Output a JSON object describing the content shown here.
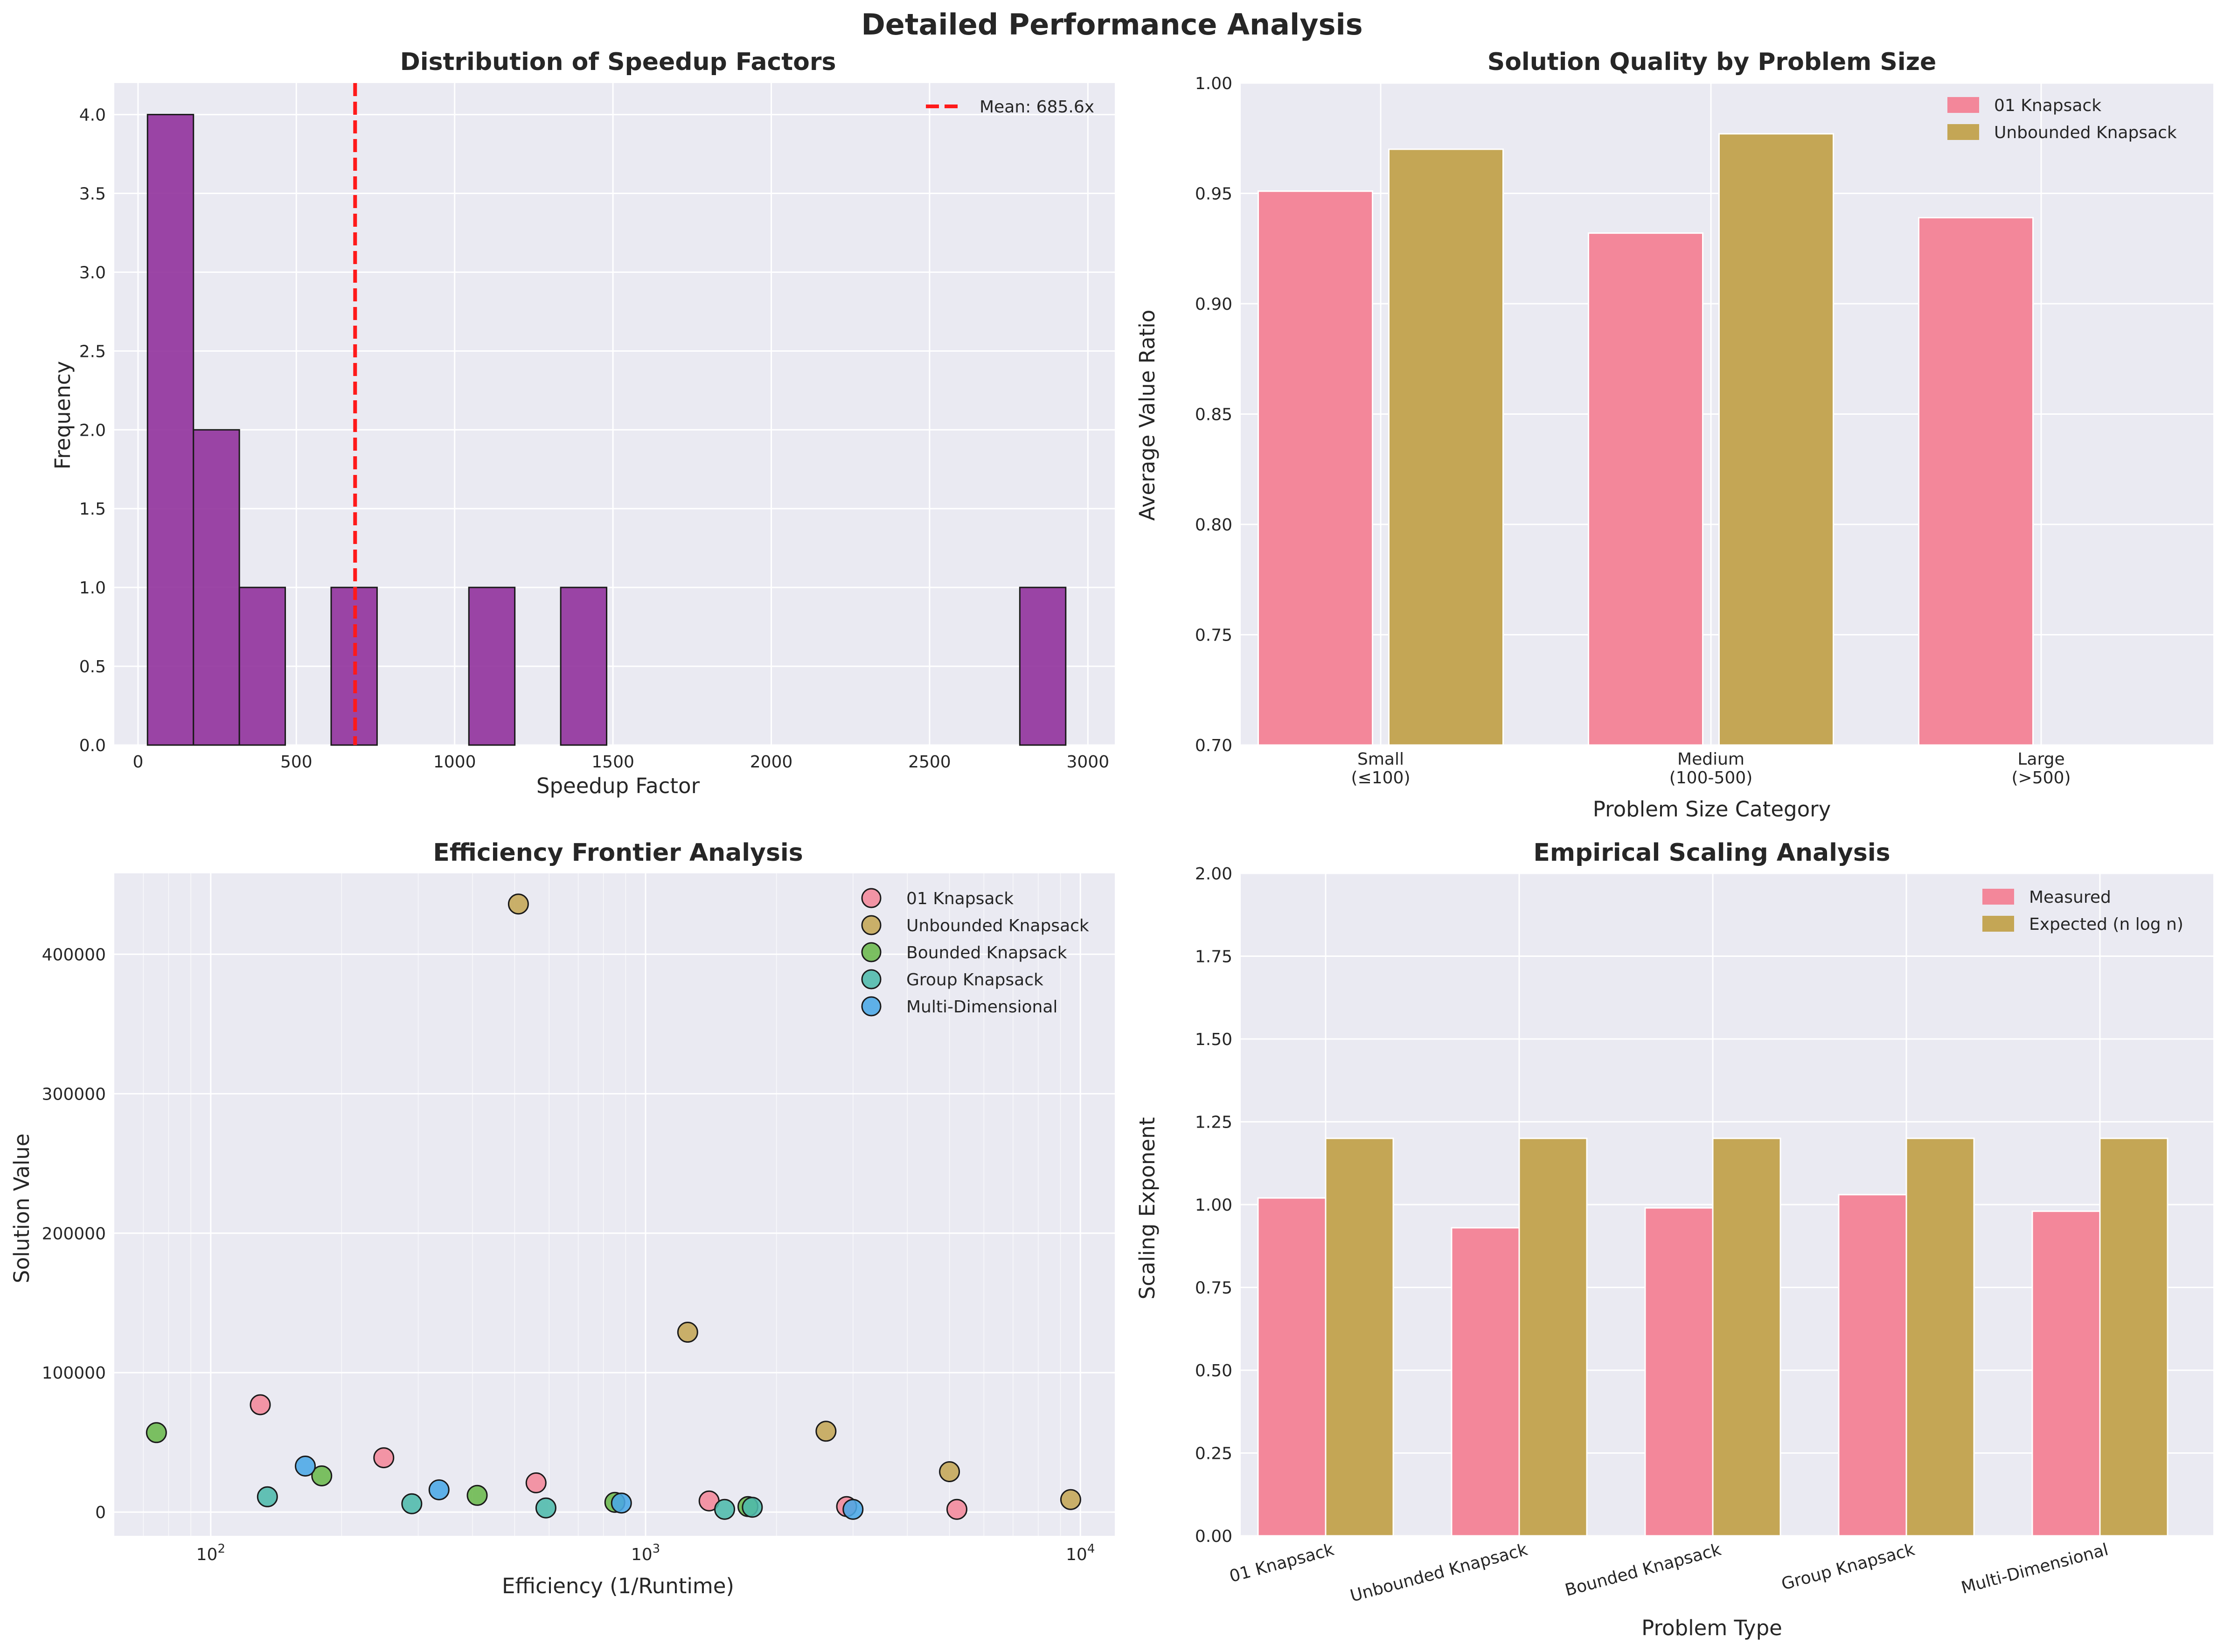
{
  "figure": {
    "title": "Detailed Performance Analysis"
  },
  "colors": {
    "purple": "#8e2c9a",
    "pink": "#f3879a",
    "gold": "#c4a655",
    "green": "#6ab84c",
    "teal": "#4dbaab",
    "blue": "#4aa7e6",
    "mean_line": "#ff1a1a"
  },
  "chart_data": [
    {
      "id": "hist",
      "type": "bar",
      "title": "Distribution of Speedup Factors",
      "xlabel": "Speedup Factor",
      "ylabel": "Frequency",
      "xlim": [
        -75,
        3085
      ],
      "ylim": [
        0,
        4.2
      ],
      "xticks": [
        0,
        500,
        1000,
        1500,
        2000,
        2500,
        3000
      ],
      "yticks": [
        0.0,
        0.5,
        1.0,
        1.5,
        2.0,
        2.5,
        3.0,
        3.5,
        4.0
      ],
      "bin_start": 30,
      "bin_width": 145,
      "counts": [
        4,
        2,
        1,
        0,
        1,
        0,
        0,
        1,
        0,
        1,
        0,
        0,
        0,
        0,
        0,
        0,
        0,
        0,
        0,
        1
      ],
      "mean": 685.6,
      "legend": [
        "Mean: 685.6x"
      ]
    },
    {
      "id": "quality",
      "type": "bar",
      "title": "Solution Quality by Problem Size",
      "xlabel": "Problem Size Category",
      "ylabel": "Average Value Ratio",
      "ylim": [
        0.7,
        1.0
      ],
      "yticks": [
        0.7,
        0.75,
        0.8,
        0.85,
        0.9,
        0.95,
        1.0
      ],
      "categories": [
        [
          "Small",
          "(≤100)"
        ],
        [
          "Medium",
          "(100-500)"
        ],
        [
          "Large",
          "(>500)"
        ]
      ],
      "series": [
        {
          "name": "01 Knapsack",
          "values": [
            0.951,
            0.932,
            0.939
          ]
        },
        {
          "name": "Unbounded Knapsack",
          "values": [
            0.97,
            0.977,
            null
          ]
        }
      ]
    },
    {
      "id": "frontier",
      "type": "scatter",
      "title": "Efficiency Frontier Analysis",
      "xlabel": "Efficiency (1/Runtime)",
      "ylabel": "Solution Value",
      "xscale": "log",
      "xlim": [
        60,
        12000
      ],
      "ylim": [
        -17000,
        458000
      ],
      "xticks_log": [
        100,
        1000,
        10000
      ],
      "yticks": [
        0,
        100000,
        200000,
        300000,
        400000
      ],
      "series": [
        {
          "name": "01 Knapsack",
          "points": [
            [
              130,
              77000
            ],
            [
              250,
              39000
            ],
            [
              560,
              21000
            ],
            [
              1400,
              8000
            ],
            [
              2900,
              4000
            ],
            [
              5200,
              2000
            ]
          ]
        },
        {
          "name": "Unbounded Knapsack",
          "points": [
            [
              510,
              436000
            ],
            [
              1250,
              129000
            ],
            [
              2600,
              58000
            ],
            [
              5000,
              29000
            ],
            [
              9500,
              9000
            ]
          ]
        },
        {
          "name": "Bounded Knapsack",
          "points": [
            [
              75,
              57000
            ],
            [
              180,
              26000
            ],
            [
              410,
              12000
            ],
            [
              850,
              7000
            ],
            [
              1720,
              4000
            ]
          ]
        },
        {
          "name": "Group Knapsack",
          "points": [
            [
              135,
              11000
            ],
            [
              290,
              6000
            ],
            [
              590,
              3000
            ],
            [
              1520,
              2000
            ],
            [
              1760,
              3500
            ]
          ]
        },
        {
          "name": "Multi-Dimensional",
          "points": [
            [
              165,
              33000
            ],
            [
              335,
              16000
            ],
            [
              880,
              6500
            ],
            [
              3000,
              2000
            ]
          ]
        }
      ]
    },
    {
      "id": "scaling",
      "type": "bar",
      "title": "Empirical Scaling Analysis",
      "xlabel": "Problem Type",
      "ylabel": "Scaling Exponent",
      "ylim": [
        0,
        2.0
      ],
      "yticks": [
        0.0,
        0.25,
        0.5,
        0.75,
        1.0,
        1.25,
        1.5,
        1.75,
        2.0
      ],
      "categories": [
        "01 Knapsack",
        "Unbounded Knapsack",
        "Bounded Knapsack",
        "Group Knapsack",
        "Multi-Dimensional"
      ],
      "series": [
        {
          "name": "Measured",
          "values": [
            1.02,
            0.93,
            0.99,
            1.03,
            0.98
          ]
        },
        {
          "name": "Expected (n log n)",
          "values": [
            1.2,
            1.2,
            1.2,
            1.2,
            1.2
          ]
        }
      ]
    }
  ]
}
